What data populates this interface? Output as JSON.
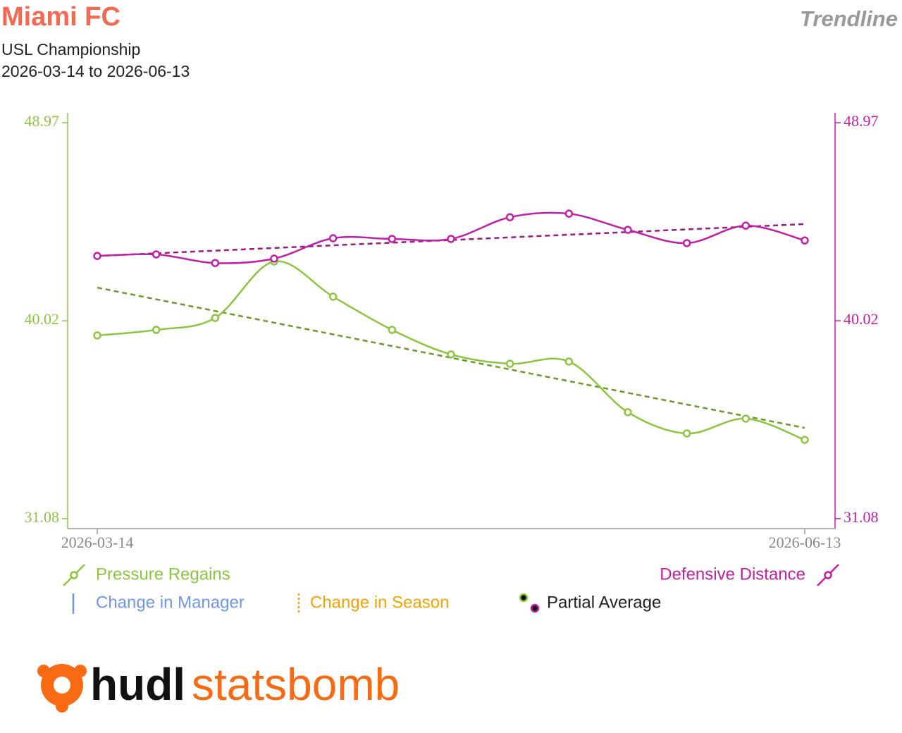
{
  "header": {
    "title": "Miami FC",
    "subtitle": "USL Championship",
    "date_range": "2026-03-14 to 2026-06-13",
    "mode": "Trendline"
  },
  "chart_data": {
    "type": "line",
    "categories": [
      "2026-03-14",
      null,
      null,
      null,
      null,
      null,
      null,
      null,
      null,
      null,
      null,
      null,
      "2026-06-13"
    ],
    "series": [
      {
        "name": "Pressure Regains",
        "color": "#8cc63f",
        "trend_color": "#6a9a2a",
        "axis": "y",
        "values": [
          39.36,
          39.61,
          40.15,
          42.7,
          41.11,
          39.61,
          38.5,
          38.08,
          38.18,
          35.89,
          34.93,
          35.6,
          34.64
        ],
        "trend": [
          41.52,
          35.18
        ]
      },
      {
        "name": "Defensive Distance",
        "color": "#c21fa8",
        "trend_color": "#9b1a85",
        "axis": "y2",
        "values": [
          42.95,
          43.02,
          42.63,
          42.83,
          43.75,
          43.72,
          43.72,
          44.7,
          44.86,
          44.13,
          43.53,
          44.32,
          43.65
        ],
        "trend": [
          42.95,
          44.39
        ]
      }
    ],
    "ylim": [
      30.63,
      49.42
    ],
    "yticks": [
      31.08,
      40.02,
      48.97
    ],
    "y2lim": [
      30.63,
      49.42
    ],
    "y2ticks": [
      31.08,
      40.02,
      48.97
    ],
    "legend_extra": {
      "manager": "Change in Manager",
      "season": "Change in Season",
      "partial": "Partial Average"
    }
  },
  "logo": {
    "hudl": "hudl",
    "statsbomb": "statsbomb"
  }
}
